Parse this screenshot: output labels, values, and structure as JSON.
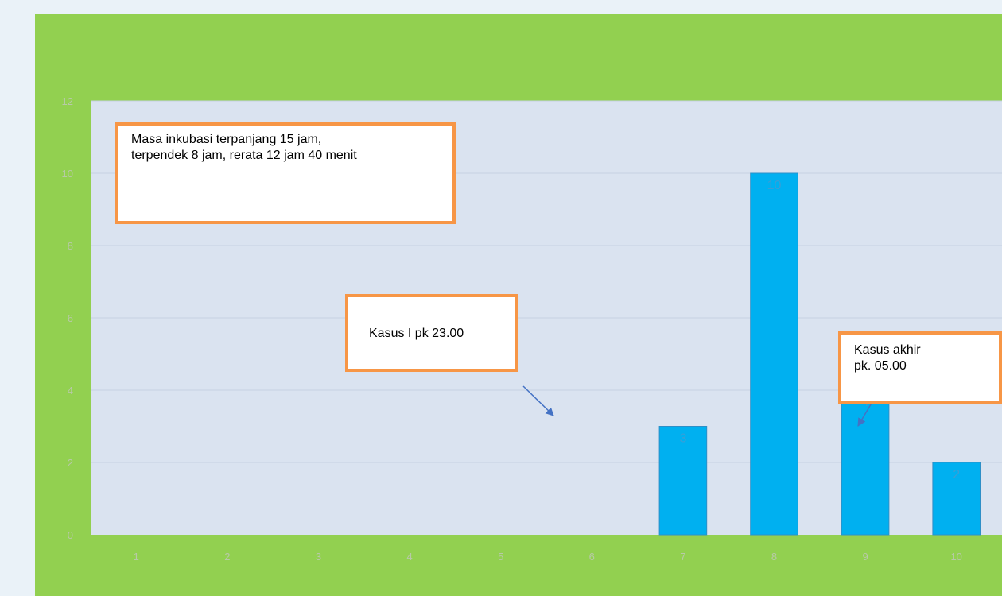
{
  "chart_data": {
    "type": "bar",
    "categories": [
      "1",
      "2",
      "3",
      "4",
      "5",
      "6",
      "7",
      "8",
      "9",
      "10"
    ],
    "values": [
      0,
      0,
      0,
      0,
      0,
      0,
      3,
      10,
      4,
      2
    ],
    "data_labels": [
      "",
      "",
      "",
      "",
      "",
      "",
      "3",
      "10",
      "4",
      "2"
    ],
    "yticks": [
      "0",
      "2",
      "4",
      "6",
      "8",
      "10",
      "12"
    ],
    "ylim": [
      0,
      12
    ],
    "grid": true,
    "title": "",
    "xlabel": "",
    "ylabel": "",
    "colors": {
      "slide_background": "#92d050",
      "plot_background": "#dae3f0",
      "bar": "#00b0f0",
      "callout_border": "#f79646",
      "arrow": "#4472c4"
    }
  },
  "annotations": {
    "incubation": {
      "line1": "Masa inkubasi terpanjang 15 jam,",
      "line2": "terpendek 8 jam, rerata 12 jam 40 menit"
    },
    "first_case": {
      "line1": "Kasus I pk 23.00"
    },
    "last_case": {
      "line1": "Kasus akhir",
      "line2": "pk. 05.00"
    }
  }
}
